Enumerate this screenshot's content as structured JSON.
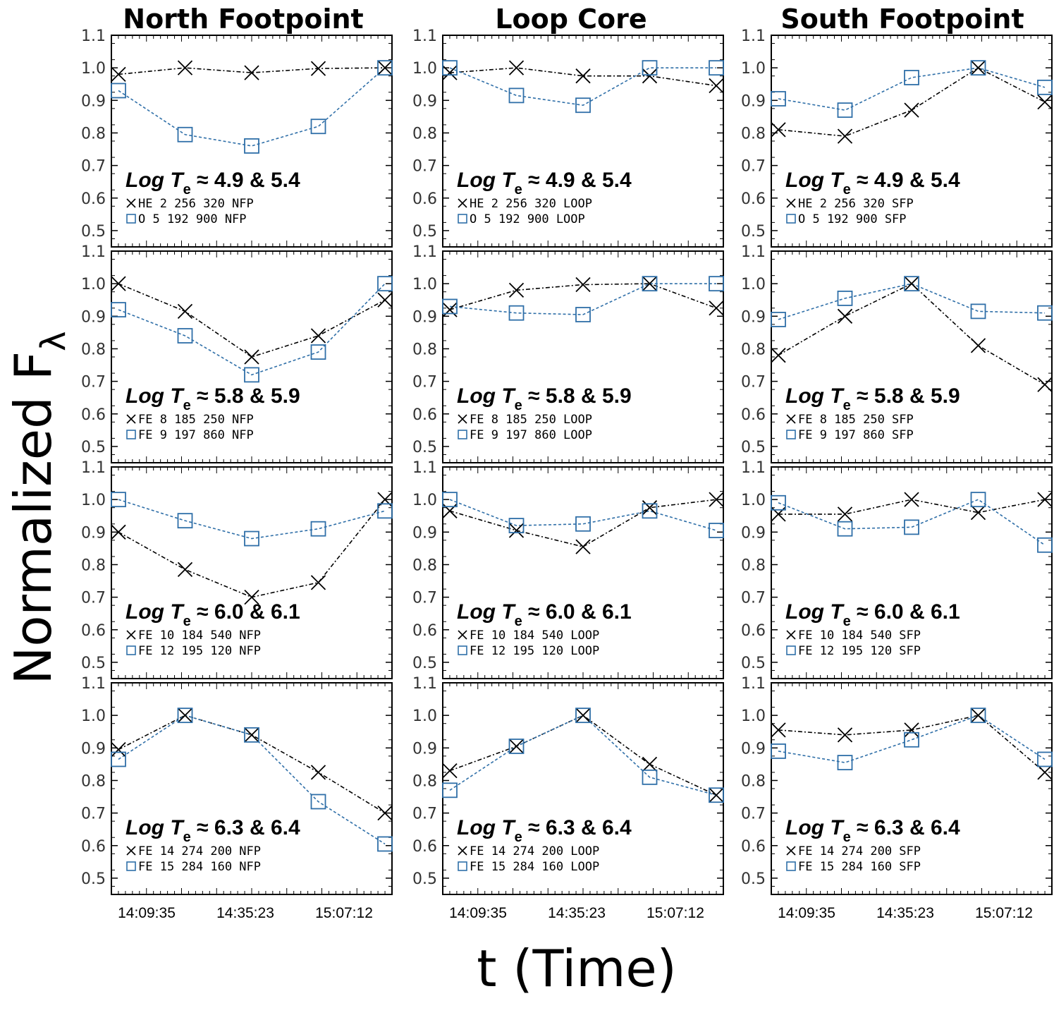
{
  "colors": {
    "black_series": "#000000",
    "blue_series": "#2f6fa8"
  },
  "figure": {
    "y_axis_label": "Normalized F",
    "y_axis_subscript": "λ",
    "x_axis_label": "t (Time)",
    "columns": [
      "North Footpoint",
      "Loop Core",
      "South Footpoint"
    ],
    "time_ticks": [
      "14:09:35",
      "14:35:23",
      "15:07:12"
    ],
    "te_prefix": "Log",
    "te_symbol": "T",
    "te_subscript": "e"
  },
  "chart_data": [
    {
      "type": "line",
      "title": "North Footpoint",
      "te_range": "≈ 4.9 & 5.4",
      "ylim": [
        0.45,
        1.1
      ],
      "y_ticks": [
        "1.1",
        "1.0",
        "0.9",
        "0.8",
        "0.7",
        "0.6",
        "0.5"
      ],
      "series": [
        {
          "name": "HE 2 256 320 NFP",
          "marker": "x",
          "values": [
            0.98,
            1.0,
            0.985,
            0.998,
            1.0
          ]
        },
        {
          "name": "O 5 192 900 NFP",
          "marker": "square",
          "values": [
            0.93,
            0.795,
            0.76,
            0.82,
            1.0
          ]
        }
      ]
    },
    {
      "type": "line",
      "title": "Loop Core",
      "te_range": "≈ 4.9 & 5.4",
      "ylim": [
        0.45,
        1.1
      ],
      "y_ticks": [
        "1.1",
        "1.0",
        "0.9",
        "0.8",
        "0.7",
        "0.6",
        "0.5"
      ],
      "series": [
        {
          "name": "HE 2 256 320 LOOP",
          "marker": "x",
          "values": [
            0.985,
            1.0,
            0.975,
            0.975,
            0.945
          ]
        },
        {
          "name": "O 5 192 900 LOOP",
          "marker": "square",
          "values": [
            1.0,
            0.915,
            0.885,
            1.0,
            1.0
          ]
        }
      ]
    },
    {
      "type": "line",
      "title": "South Footpoint",
      "te_range": "≈ 4.9 & 5.4",
      "ylim": [
        0.45,
        1.1
      ],
      "y_ticks": [
        "1.1",
        "1.0",
        "0.9",
        "0.8",
        "0.7",
        "0.6",
        "0.5"
      ],
      "series": [
        {
          "name": "HE 2 256 320 SFP",
          "marker": "x",
          "values": [
            0.81,
            0.79,
            0.87,
            1.0,
            0.895
          ]
        },
        {
          "name": "O 5 192 900 SFP",
          "marker": "square",
          "values": [
            0.905,
            0.87,
            0.97,
            1.0,
            0.94
          ]
        }
      ]
    },
    {
      "type": "line",
      "title": "North Footpoint",
      "te_range": "≈ 5.8 & 5.9",
      "ylim": [
        0.45,
        1.1
      ],
      "y_ticks": [
        "1.1",
        "1.0",
        "0.9",
        "0.8",
        "0.7",
        "0.6",
        "0.5"
      ],
      "series": [
        {
          "name": "FE 8 185 250 NFP",
          "marker": "x",
          "values": [
            1.0,
            0.915,
            0.775,
            0.84,
            0.95
          ]
        },
        {
          "name": "FE 9 197 860 NFP",
          "marker": "square",
          "values": [
            0.92,
            0.84,
            0.72,
            0.79,
            1.0
          ]
        }
      ]
    },
    {
      "type": "line",
      "title": "Loop Core",
      "te_range": "≈ 5.8 & 5.9",
      "ylim": [
        0.45,
        1.1
      ],
      "y_ticks": [
        "1.1",
        "1.0",
        "0.9",
        "0.8",
        "0.7",
        "0.6",
        "0.5"
      ],
      "series": [
        {
          "name": "FE 8 185 250 LOOP",
          "marker": "x",
          "values": [
            0.92,
            0.98,
            0.997,
            1.0,
            0.925
          ]
        },
        {
          "name": "FE 9 197 860 LOOP",
          "marker": "square",
          "values": [
            0.93,
            0.91,
            0.905,
            1.0,
            1.0
          ]
        }
      ]
    },
    {
      "type": "line",
      "title": "South Footpoint",
      "te_range": "≈ 5.8 & 5.9",
      "ylim": [
        0.45,
        1.1
      ],
      "y_ticks": [
        "1.1",
        "1.0",
        "0.9",
        "0.8",
        "0.7",
        "0.6",
        "0.5"
      ],
      "series": [
        {
          "name": "FE 8 185 250 SFP",
          "marker": "x",
          "values": [
            0.78,
            0.9,
            1.0,
            0.81,
            0.69
          ]
        },
        {
          "name": "FE 9 197 860 SFP",
          "marker": "square",
          "values": [
            0.89,
            0.955,
            1.0,
            0.915,
            0.91
          ]
        }
      ]
    },
    {
      "type": "line",
      "title": "North Footpoint",
      "te_range": "≈ 6.0 & 6.1",
      "ylim": [
        0.45,
        1.1
      ],
      "y_ticks": [
        "1.1",
        "1.0",
        "0.9",
        "0.8",
        "0.7",
        "0.6",
        "0.5"
      ],
      "series": [
        {
          "name": "FE 10 184 540 NFP",
          "marker": "x",
          "values": [
            0.9,
            0.785,
            0.7,
            0.745,
            1.0
          ]
        },
        {
          "name": "FE 12 195 120 NFP",
          "marker": "square",
          "values": [
            1.0,
            0.935,
            0.88,
            0.91,
            0.965
          ]
        }
      ]
    },
    {
      "type": "line",
      "title": "Loop Core",
      "te_range": "≈ 6.0 & 6.1",
      "ylim": [
        0.45,
        1.1
      ],
      "y_ticks": [
        "1.1",
        "1.0",
        "0.9",
        "0.8",
        "0.7",
        "0.6",
        "0.5"
      ],
      "series": [
        {
          "name": "FE 10 184 540 LOOP",
          "marker": "x",
          "values": [
            0.965,
            0.905,
            0.855,
            0.975,
            1.0
          ]
        },
        {
          "name": "FE 12 195 120 LOOP",
          "marker": "square",
          "values": [
            1.0,
            0.92,
            0.925,
            0.965,
            0.905
          ]
        }
      ]
    },
    {
      "type": "line",
      "title": "South Footpoint",
      "te_range": "≈ 6.0 & 6.1",
      "ylim": [
        0.45,
        1.1
      ],
      "y_ticks": [
        "1.1",
        "1.0",
        "0.9",
        "0.8",
        "0.7",
        "0.6",
        "0.5"
      ],
      "series": [
        {
          "name": "FE 10 184 540 SFP",
          "marker": "x",
          "values": [
            0.955,
            0.955,
            1.0,
            0.96,
            1.0
          ]
        },
        {
          "name": "FE 12 195 120 SFP",
          "marker": "square",
          "values": [
            0.99,
            0.91,
            0.915,
            1.0,
            0.86
          ]
        }
      ]
    },
    {
      "type": "line",
      "title": "North Footpoint",
      "te_range": "≈ 6.3 & 6.4",
      "ylim": [
        0.45,
        1.1
      ],
      "y_ticks": [
        "1.1",
        "1.0",
        "0.9",
        "0.8",
        "0.7",
        "0.6",
        "0.5"
      ],
      "series": [
        {
          "name": "FE 14 274 200 NFP",
          "marker": "x",
          "values": [
            0.895,
            1.0,
            0.94,
            0.825,
            0.7
          ]
        },
        {
          "name": "FE 15 284 160 NFP",
          "marker": "square",
          "values": [
            0.865,
            1.0,
            0.94,
            0.735,
            0.605
          ]
        }
      ]
    },
    {
      "type": "line",
      "title": "Loop Core",
      "te_range": "≈ 6.3 & 6.4",
      "ylim": [
        0.45,
        1.1
      ],
      "y_ticks": [
        "1.1",
        "1.0",
        "0.9",
        "0.8",
        "0.7",
        "0.6",
        "0.5"
      ],
      "series": [
        {
          "name": "FE 14 274 200 LOOP",
          "marker": "x",
          "values": [
            0.83,
            0.905,
            1.0,
            0.85,
            0.755
          ]
        },
        {
          "name": "FE 15 284 160 LOOP",
          "marker": "square",
          "values": [
            0.77,
            0.905,
            1.0,
            0.81,
            0.755
          ]
        }
      ]
    },
    {
      "type": "line",
      "title": "South Footpoint",
      "te_range": "≈ 6.3 & 6.4",
      "ylim": [
        0.45,
        1.1
      ],
      "y_ticks": [
        "1.1",
        "1.0",
        "0.9",
        "0.8",
        "0.7",
        "0.6",
        "0.5"
      ],
      "series": [
        {
          "name": "FE 14 274 200 SFP",
          "marker": "x",
          "values": [
            0.955,
            0.94,
            0.955,
            1.0,
            0.825
          ]
        },
        {
          "name": "FE 15 284 160 SFP",
          "marker": "square",
          "values": [
            0.89,
            0.855,
            0.925,
            1.0,
            0.865
          ]
        }
      ]
    }
  ]
}
